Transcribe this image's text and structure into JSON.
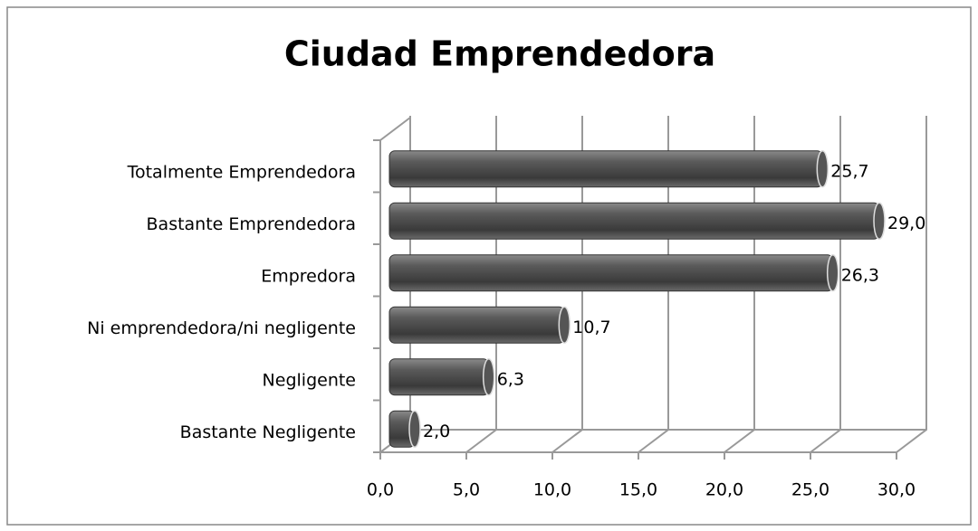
{
  "chart_data": {
    "type": "bar",
    "orientation": "horizontal",
    "title": "Ciudad Emprendedora",
    "categories": [
      "Totalmente Emprendedora",
      "Bastante Emprendedora",
      "Empredora",
      "Ni emprendedora/ni negligente",
      "Negligente",
      "Bastante Negligente"
    ],
    "values": [
      25.7,
      29.0,
      26.3,
      10.7,
      6.3,
      2.0
    ],
    "value_labels": [
      "25,7",
      "29,0",
      "26,3",
      "10,7",
      "6,3",
      "2,0"
    ],
    "color": "#555555",
    "xlim": [
      0,
      30
    ],
    "xticks": [
      {
        "value": 0,
        "label": "0,0"
      },
      {
        "value": 5,
        "label": "5,0"
      },
      {
        "value": 10,
        "label": "10,0"
      },
      {
        "value": 15,
        "label": "15,0"
      },
      {
        "value": 20,
        "label": "20,0"
      },
      {
        "value": 25,
        "label": "25,0"
      },
      {
        "value": 30,
        "label": "30,0"
      }
    ],
    "grid": true
  }
}
